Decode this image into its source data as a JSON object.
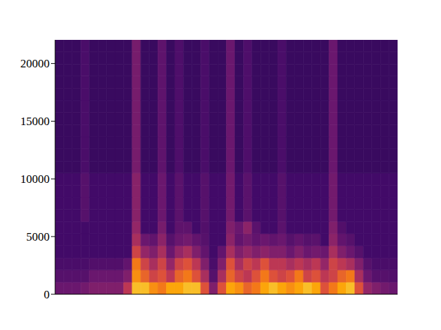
{
  "chart_data": {
    "type": "heatmap",
    "tick_labels": "y",
    "xlim": [
      0,
      40
    ],
    "ylim": [
      0,
      22050
    ],
    "yticks": [
      0,
      5000,
      10000,
      15000,
      20000
    ],
    "zlim": [
      0,
      1
    ],
    "x_edges": [
      0,
      1,
      2,
      3,
      4,
      5,
      6,
      7,
      8,
      9,
      10,
      11,
      12,
      13,
      14,
      15,
      16,
      17,
      18,
      19,
      20,
      21,
      22,
      23,
      24,
      25,
      26,
      27,
      28,
      29,
      30,
      31,
      32,
      33,
      34,
      35,
      36,
      37,
      38,
      39,
      40
    ],
    "y_edges": [
      0,
      1050,
      2100,
      3150,
      4200,
      5250,
      6300,
      7350,
      8400,
      9450,
      10500,
      11550,
      12600,
      13650,
      14700,
      15750,
      16800,
      17850,
      18900,
      19950,
      21000,
      22050
    ],
    "cells": [
      [
        0.3,
        0.3,
        0.3,
        0.32,
        0.35,
        0.35,
        0.35,
        0.35,
        0.5,
        0.85,
        0.85,
        0.75,
        0.7,
        0.8,
        0.8,
        0.85,
        0.85,
        0.6,
        0.35,
        0.6,
        0.8,
        0.75,
        0.65,
        0.7,
        0.8,
        0.85,
        0.8,
        0.75,
        0.8,
        0.85,
        0.8,
        0.6,
        0.7,
        0.8,
        0.85,
        0.6,
        0.4,
        0.35,
        0.32,
        0.3
      ],
      [
        0.25,
        0.25,
        0.25,
        0.25,
        0.3,
        0.3,
        0.3,
        0.3,
        0.35,
        0.75,
        0.65,
        0.55,
        0.6,
        0.5,
        0.65,
        0.7,
        0.6,
        0.45,
        0.25,
        0.45,
        0.65,
        0.55,
        0.5,
        0.6,
        0.7,
        0.6,
        0.55,
        0.6,
        0.7,
        0.55,
        0.6,
        0.5,
        0.55,
        0.65,
        0.7,
        0.45,
        0.3,
        0.25,
        0.25,
        0.24
      ],
      [
        0.22,
        0.22,
        0.22,
        0.22,
        0.24,
        0.24,
        0.24,
        0.24,
        0.28,
        0.7,
        0.55,
        0.45,
        0.55,
        0.4,
        0.55,
        0.6,
        0.5,
        0.35,
        0.22,
        0.35,
        0.6,
        0.45,
        0.55,
        0.5,
        0.6,
        0.5,
        0.5,
        0.45,
        0.5,
        0.45,
        0.5,
        0.4,
        0.55,
        0.5,
        0.45,
        0.35,
        0.25,
        0.22,
        0.22,
        0.22
      ],
      [
        0.2,
        0.2,
        0.2,
        0.2,
        0.2,
        0.2,
        0.2,
        0.2,
        0.2,
        0.55,
        0.4,
        0.35,
        0.45,
        0.3,
        0.4,
        0.45,
        0.35,
        0.28,
        0.2,
        0.28,
        0.45,
        0.35,
        0.4,
        0.35,
        0.38,
        0.35,
        0.35,
        0.3,
        0.35,
        0.3,
        0.32,
        0.3,
        0.45,
        0.35,
        0.3,
        0.25,
        0.2,
        0.2,
        0.2,
        0.2
      ],
      [
        0.2,
        0.2,
        0.2,
        0.2,
        0.2,
        0.2,
        0.2,
        0.2,
        0.2,
        0.45,
        0.3,
        0.28,
        0.38,
        0.25,
        0.3,
        0.32,
        0.28,
        0.25,
        0.2,
        0.2,
        0.38,
        0.28,
        0.32,
        0.28,
        0.3,
        0.28,
        0.3,
        0.25,
        0.28,
        0.25,
        0.26,
        0.2,
        0.38,
        0.28,
        0.25,
        0.2,
        0.2,
        0.2,
        0.2,
        0.2
      ],
      [
        0.2,
        0.2,
        0.2,
        0.2,
        0.2,
        0.2,
        0.2,
        0.2,
        0.2,
        0.4,
        0.2,
        0.2,
        0.33,
        0.2,
        0.27,
        0.27,
        0.2,
        0.24,
        0.2,
        0.2,
        0.35,
        0.3,
        0.38,
        0.26,
        0.2,
        0.2,
        0.26,
        0.2,
        0.2,
        0.2,
        0.2,
        0.2,
        0.35,
        0.24,
        0.2,
        0.2,
        0.2,
        0.2,
        0.2,
        0.2
      ],
      [
        0.2,
        0.2,
        0.2,
        0.25,
        0.2,
        0.2,
        0.2,
        0.2,
        0.2,
        0.37,
        0.2,
        0.2,
        0.3,
        0.2,
        0.26,
        0.2,
        0.2,
        0.25,
        0.2,
        0.2,
        0.32,
        0.2,
        0.26,
        0.2,
        0.2,
        0.2,
        0.25,
        0.2,
        0.2,
        0.2,
        0.2,
        0.2,
        0.32,
        0.2,
        0.2,
        0.2,
        0.2,
        0.2,
        0.2,
        0.2
      ],
      [
        0.2,
        0.2,
        0.2,
        0.25,
        0.2,
        0.2,
        0.2,
        0.2,
        0.2,
        0.37,
        0.2,
        0.2,
        0.3,
        0.2,
        0.26,
        0.2,
        0.2,
        0.25,
        0.2,
        0.2,
        0.32,
        0.2,
        0.26,
        0.2,
        0.2,
        0.2,
        0.25,
        0.2,
        0.2,
        0.2,
        0.2,
        0.2,
        0.32,
        0.2,
        0.2,
        0.2,
        0.2,
        0.2,
        0.2,
        0.2
      ],
      [
        0.2,
        0.2,
        0.2,
        0.25,
        0.2,
        0.2,
        0.2,
        0.2,
        0.2,
        0.37,
        0.2,
        0.2,
        0.3,
        0.2,
        0.26,
        0.2,
        0.2,
        0.25,
        0.2,
        0.2,
        0.32,
        0.2,
        0.26,
        0.2,
        0.2,
        0.2,
        0.25,
        0.2,
        0.2,
        0.2,
        0.2,
        0.2,
        0.32,
        0.2,
        0.2,
        0.2,
        0.2,
        0.2,
        0.2,
        0.2
      ],
      [
        0.2,
        0.2,
        0.2,
        0.25,
        0.2,
        0.2,
        0.2,
        0.2,
        0.2,
        0.37,
        0.2,
        0.2,
        0.3,
        0.2,
        0.26,
        0.2,
        0.2,
        0.25,
        0.2,
        0.2,
        0.32,
        0.2,
        0.26,
        0.2,
        0.2,
        0.2,
        0.25,
        0.2,
        0.2,
        0.2,
        0.2,
        0.2,
        0.32,
        0.2,
        0.2,
        0.2,
        0.2,
        0.2,
        0.2,
        0.2
      ],
      [
        0.18,
        0.18,
        0.18,
        0.22,
        0.18,
        0.18,
        0.18,
        0.18,
        0.18,
        0.33,
        0.18,
        0.18,
        0.27,
        0.18,
        0.23,
        0.18,
        0.18,
        0.22,
        0.18,
        0.18,
        0.3,
        0.18,
        0.23,
        0.18,
        0.18,
        0.18,
        0.22,
        0.18,
        0.18,
        0.18,
        0.18,
        0.18,
        0.3,
        0.18,
        0.18,
        0.18,
        0.18,
        0.18,
        0.18,
        0.18
      ],
      [
        0.18,
        0.18,
        0.18,
        0.22,
        0.18,
        0.18,
        0.18,
        0.18,
        0.18,
        0.33,
        0.18,
        0.18,
        0.27,
        0.18,
        0.23,
        0.18,
        0.18,
        0.22,
        0.18,
        0.18,
        0.3,
        0.18,
        0.23,
        0.18,
        0.18,
        0.18,
        0.22,
        0.18,
        0.18,
        0.18,
        0.18,
        0.18,
        0.3,
        0.18,
        0.18,
        0.18,
        0.18,
        0.18,
        0.18,
        0.18
      ],
      [
        0.18,
        0.18,
        0.18,
        0.22,
        0.18,
        0.18,
        0.18,
        0.18,
        0.18,
        0.33,
        0.18,
        0.18,
        0.27,
        0.18,
        0.23,
        0.18,
        0.18,
        0.22,
        0.18,
        0.18,
        0.3,
        0.18,
        0.23,
        0.18,
        0.18,
        0.18,
        0.22,
        0.18,
        0.18,
        0.18,
        0.18,
        0.18,
        0.3,
        0.18,
        0.18,
        0.18,
        0.18,
        0.18,
        0.18,
        0.18
      ],
      [
        0.18,
        0.18,
        0.18,
        0.22,
        0.18,
        0.18,
        0.18,
        0.18,
        0.18,
        0.33,
        0.18,
        0.18,
        0.27,
        0.18,
        0.23,
        0.18,
        0.18,
        0.22,
        0.18,
        0.18,
        0.3,
        0.18,
        0.23,
        0.18,
        0.18,
        0.18,
        0.22,
        0.18,
        0.18,
        0.18,
        0.18,
        0.18,
        0.3,
        0.18,
        0.18,
        0.18,
        0.18,
        0.18,
        0.18,
        0.18
      ],
      [
        0.18,
        0.18,
        0.18,
        0.22,
        0.18,
        0.18,
        0.18,
        0.18,
        0.18,
        0.33,
        0.18,
        0.18,
        0.27,
        0.18,
        0.23,
        0.18,
        0.18,
        0.22,
        0.18,
        0.18,
        0.3,
        0.18,
        0.23,
        0.18,
        0.18,
        0.18,
        0.22,
        0.18,
        0.18,
        0.18,
        0.18,
        0.18,
        0.3,
        0.18,
        0.18,
        0.18,
        0.18,
        0.18,
        0.18,
        0.18
      ],
      [
        0.18,
        0.18,
        0.18,
        0.22,
        0.18,
        0.18,
        0.18,
        0.18,
        0.18,
        0.33,
        0.18,
        0.18,
        0.27,
        0.18,
        0.23,
        0.18,
        0.18,
        0.22,
        0.18,
        0.18,
        0.3,
        0.18,
        0.23,
        0.18,
        0.18,
        0.18,
        0.22,
        0.18,
        0.18,
        0.18,
        0.18,
        0.18,
        0.3,
        0.18,
        0.18,
        0.18,
        0.18,
        0.18,
        0.18,
        0.18
      ],
      [
        0.18,
        0.18,
        0.18,
        0.22,
        0.18,
        0.18,
        0.18,
        0.18,
        0.18,
        0.33,
        0.18,
        0.18,
        0.27,
        0.18,
        0.23,
        0.18,
        0.18,
        0.22,
        0.18,
        0.18,
        0.3,
        0.18,
        0.23,
        0.18,
        0.18,
        0.18,
        0.22,
        0.18,
        0.18,
        0.18,
        0.18,
        0.18,
        0.3,
        0.18,
        0.18,
        0.18,
        0.18,
        0.18,
        0.18,
        0.18
      ],
      [
        0.18,
        0.18,
        0.18,
        0.22,
        0.18,
        0.18,
        0.18,
        0.18,
        0.18,
        0.33,
        0.18,
        0.18,
        0.27,
        0.18,
        0.23,
        0.18,
        0.18,
        0.22,
        0.18,
        0.18,
        0.3,
        0.18,
        0.23,
        0.18,
        0.18,
        0.18,
        0.22,
        0.18,
        0.18,
        0.18,
        0.18,
        0.18,
        0.3,
        0.18,
        0.18,
        0.18,
        0.18,
        0.18,
        0.18,
        0.18
      ],
      [
        0.18,
        0.18,
        0.18,
        0.22,
        0.18,
        0.18,
        0.18,
        0.18,
        0.18,
        0.33,
        0.18,
        0.18,
        0.27,
        0.18,
        0.23,
        0.18,
        0.18,
        0.22,
        0.18,
        0.18,
        0.3,
        0.18,
        0.23,
        0.18,
        0.18,
        0.18,
        0.22,
        0.18,
        0.18,
        0.18,
        0.18,
        0.18,
        0.3,
        0.18,
        0.18,
        0.18,
        0.18,
        0.18,
        0.18,
        0.18
      ],
      [
        0.18,
        0.18,
        0.18,
        0.22,
        0.18,
        0.18,
        0.18,
        0.18,
        0.18,
        0.33,
        0.18,
        0.18,
        0.27,
        0.18,
        0.23,
        0.18,
        0.18,
        0.22,
        0.18,
        0.18,
        0.3,
        0.18,
        0.23,
        0.18,
        0.18,
        0.18,
        0.22,
        0.18,
        0.18,
        0.18,
        0.18,
        0.18,
        0.3,
        0.18,
        0.18,
        0.18,
        0.18,
        0.18,
        0.18,
        0.18
      ],
      [
        0.18,
        0.18,
        0.18,
        0.22,
        0.18,
        0.18,
        0.18,
        0.18,
        0.18,
        0.33,
        0.18,
        0.18,
        0.27,
        0.18,
        0.23,
        0.18,
        0.18,
        0.22,
        0.18,
        0.18,
        0.3,
        0.18,
        0.23,
        0.18,
        0.18,
        0.18,
        0.22,
        0.18,
        0.18,
        0.18,
        0.18,
        0.18,
        0.3,
        0.18,
        0.18,
        0.18,
        0.18,
        0.18,
        0.18,
        0.18
      ]
    ]
  }
}
